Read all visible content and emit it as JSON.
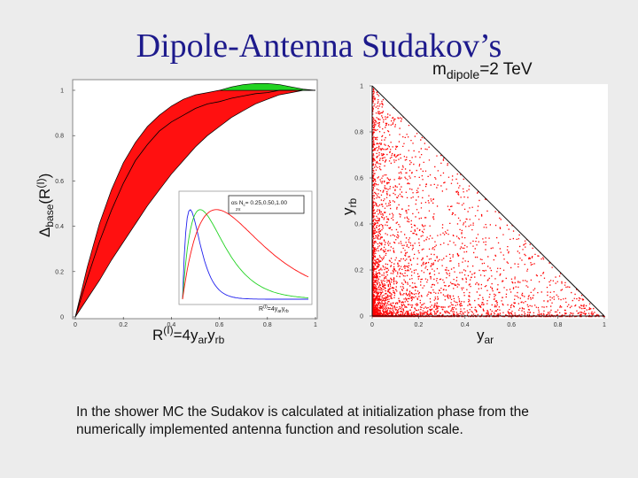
{
  "slide": {
    "title": "Dipole-Antenna Sudakov’s",
    "mdipole_main": "m",
    "mdipole_sub": "dipole",
    "mdipole_value": "=2 TeV",
    "caption": "In the shower MC the Sudakov is calculated at initialization phase from the numerically implemented antenna function and resolution scale."
  },
  "colors": {
    "title": "#1d1a8c",
    "band": "#ff1010",
    "green": "#22d322",
    "blue": "#2222ee",
    "scatter": "#ff0000"
  },
  "chart_data": [
    {
      "type": "area",
      "ylabel_main": "Δ",
      "ylabel_sub": "base",
      "ylabel_arg": "(R",
      "ylabel_sup": "(I)",
      "ylabel_close": ")",
      "xlabel_main": "R",
      "xlabel_sup": "(I)",
      "xlabel_eq": "=4y",
      "xlabel_sub1": "ar",
      "xlabel_y2": "y",
      "xlabel_sub2": "rb",
      "xlim": [
        0,
        1
      ],
      "ylim": [
        0,
        1.05
      ],
      "x_ticks": [
        "0",
        "0.2",
        "0.4",
        "0.6",
        "0.8",
        "1"
      ],
      "y_ticks": [
        "0",
        "0.2",
        "0.4",
        "0.6",
        "0.8",
        "1"
      ],
      "series": [
        {
          "x": [
            0,
            0.05,
            0.1,
            0.15,
            0.2,
            0.25,
            0.3,
            0.35,
            0.4,
            0.45,
            0.5,
            0.55,
            0.6,
            0.65,
            0.7,
            0.75,
            0.8,
            0.85,
            0.9,
            0.95,
            1.0
          ],
          "y": [
            0,
            0.22,
            0.41,
            0.56,
            0.68,
            0.77,
            0.84,
            0.89,
            0.93,
            0.96,
            0.98,
            0.99,
            1.0,
            1.0,
            1.0,
            1.0,
            1.0,
            1.0,
            1.0,
            1.0,
            1.0
          ]
        },
        {
          "x": [
            0,
            0.05,
            0.1,
            0.15,
            0.2,
            0.25,
            0.3,
            0.35,
            0.4,
            0.45,
            0.5,
            0.55,
            0.6,
            0.65,
            0.7,
            0.75,
            0.8,
            0.85,
            0.9,
            0.95,
            1.0
          ],
          "y": [
            0,
            0.17,
            0.33,
            0.47,
            0.59,
            0.69,
            0.76,
            0.82,
            0.86,
            0.89,
            0.92,
            0.94,
            0.95,
            0.965,
            0.975,
            0.985,
            0.99,
            1.0,
            1.0,
            1.0,
            1.0
          ]
        },
        {
          "x": [
            0,
            0.05,
            0.1,
            0.15,
            0.2,
            0.25,
            0.3,
            0.35,
            0.4,
            0.45,
            0.5,
            0.55,
            0.6,
            0.65,
            0.7,
            0.75,
            0.8,
            0.85,
            0.9,
            0.95,
            1.0
          ],
          "y": [
            0,
            0.08,
            0.16,
            0.25,
            0.33,
            0.41,
            0.49,
            0.56,
            0.63,
            0.69,
            0.75,
            0.8,
            0.84,
            0.88,
            0.91,
            0.94,
            0.96,
            0.98,
            0.99,
            1.0,
            1.0
          ]
        },
        {
          "x": [
            0.6,
            0.65,
            0.7,
            0.75,
            0.8,
            0.85,
            0.9,
            0.95,
            1.0
          ],
          "y": [
            1.0,
            1.015,
            1.025,
            1.03,
            1.03,
            1.025,
            1.015,
            1.005,
            1.0
          ]
        }
      ]
    },
    {
      "type": "line",
      "legend": "α",
      "legend_rest": "s N",
      "legend_sub": "c",
      "legend_vals": "= 0.25,0.50,1.00",
      "legend_sub2": "2π",
      "xlabel_main": "R",
      "xlabel_sup": "(I)",
      "xlabel_eq": "=4y",
      "xlabel_sub1": "ar",
      "xlabel_y2": "y",
      "xlabel_sub2": "rb",
      "xlim": [
        0,
        1
      ],
      "ylim": [
        0,
        1
      ],
      "series": [
        {
          "color": "blue",
          "peak_x": 0.06
        },
        {
          "color": "green",
          "peak_x": 0.14
        },
        {
          "color": "red",
          "peak_x": 0.27
        }
      ]
    },
    {
      "type": "scatter",
      "ylabel_main": "y",
      "ylabel_sub": "rb",
      "xlabel_main": "y",
      "xlabel_sub": "ar",
      "xlim": [
        0,
        1
      ],
      "ylim": [
        0,
        1
      ],
      "x_ticks": [
        "0",
        "0.2",
        "0.4",
        "0.6",
        "0.8",
        "1"
      ],
      "y_ticks": [
        "0",
        "0.2",
        "0.4",
        "0.6",
        "0.8",
        "1"
      ],
      "description": "events fill triangle y_ar + y_rb ≤ 1, dense near both axes"
    }
  ]
}
